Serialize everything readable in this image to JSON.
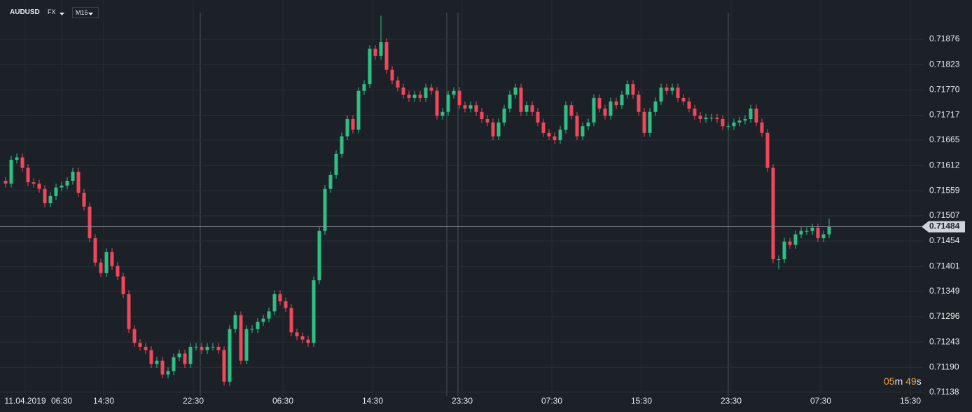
{
  "header": {
    "symbol": "AUDUSD",
    "market": "FX",
    "timeframe": "M15"
  },
  "countdown": {
    "minutes": "05",
    "minutes_unit": "m",
    "seconds": "49",
    "seconds_unit": "s"
  },
  "chart_data": {
    "type": "candlestick",
    "up_color": "#2fbf85",
    "down_color": "#f0475a",
    "current_price": 0.71484,
    "xlim": [
      -1,
      163.75
    ],
    "xticks": [
      {
        "value": 3.5,
        "label": "11.04.2019"
      },
      {
        "value": 10,
        "label": "06:30"
      },
      {
        "value": 17.5,
        "label": "14:30"
      },
      {
        "value": 33.5,
        "label": "22:30"
      },
      {
        "value": 49.5,
        "label": "06:30"
      },
      {
        "value": 65.5,
        "label": "14:30"
      },
      {
        "value": 81.5,
        "label": "23:30"
      },
      {
        "value": 97.5,
        "label": "07:30"
      },
      {
        "value": 113.5,
        "label": "15:30"
      },
      {
        "value": 129.5,
        "label": "23:30"
      },
      {
        "value": 145.5,
        "label": "07:30"
      },
      {
        "value": 161.5,
        "label": "15:30"
      }
    ],
    "ylim": [
      0.71123,
      0.71958
    ],
    "yticks": [
      0.71876,
      0.71823,
      {
        "value": 0.7177,
        "label": "0.71770"
      },
      0.71717,
      0.71665,
      0.71612,
      0.71559,
      0.71507,
      0.71454,
      0.71401,
      0.71349,
      0.71296,
      0.71243,
      {
        "value": 0.7119,
        "label": "0.71190"
      },
      0.71138
    ],
    "open": [
      0.7158,
      0.71574,
      0.71624,
      0.71629,
      0.71607,
      0.71577,
      0.71574,
      0.71563,
      0.71533,
      0.71548,
      0.71566,
      0.7157,
      0.7158,
      0.71599,
      0.71555,
      0.71526,
      0.7146,
      0.71409,
      0.71387,
      0.71431,
      0.71402,
      0.7138,
      0.71343,
      0.7127,
      0.71241,
      0.71233,
      0.71226,
      0.71197,
      0.71204,
      0.71175,
      0.71182,
      0.71211,
      0.71219,
      0.71197,
      0.71233,
      0.71233,
      0.71226,
      0.71233,
      0.71233,
      0.71226,
      0.7116,
      0.7127,
      0.71299,
      0.71204,
      0.7127,
      0.7127,
      0.71285,
      0.71292,
      0.71307,
      0.71343,
      0.71328,
      0.71314,
      0.71263,
      0.71255,
      0.71248,
      0.71241,
      0.71372,
      0.71475,
      0.71563,
      0.71592,
      0.71636,
      0.71673,
      0.71709,
      0.71687,
      0.71768,
      0.71782,
      0.71856,
      0.71841,
      0.7187,
      0.71812,
      0.7179,
      0.71775,
      0.7176,
      0.71753,
      0.7176,
      0.71753,
      0.71775,
      0.71768,
      0.71716,
      0.71724,
      0.7176,
      0.71768,
      0.71738,
      0.71731,
      0.71738,
      0.71724,
      0.71709,
      0.71702,
      0.71673,
      0.71702,
      0.71731,
      0.7176,
      0.71775,
      0.71724,
      0.71738,
      0.71724,
      0.71702,
      0.7168,
      0.71673,
      0.71665,
      0.71687,
      0.71738,
      0.71716,
      0.71673,
      0.71694,
      0.71702,
      0.71753,
      0.71731,
      0.71716,
      0.71746,
      0.71738,
      0.7176,
      0.71782,
      0.7176,
      0.71724,
      0.7168,
      0.71724,
      0.71746,
      0.71775,
      0.71768,
      0.71775,
      0.71753,
      0.71746,
      0.71731,
      0.71716,
      0.71709,
      0.71712,
      0.71712,
      0.71709,
      0.71694,
      0.71694,
      0.71702,
      0.71706,
      0.71709,
      0.71731,
      0.71702,
      0.7168,
      0.71607,
      0.71416,
      0.71416,
      0.71453,
      0.71446,
      0.71468,
      0.71475,
      0.71475,
      0.71482,
      0.7146,
      0.71468
    ],
    "high": [
      0.71588,
      0.71632,
      0.71637,
      0.71637,
      0.71615,
      0.71585,
      0.71582,
      0.71571,
      0.71556,
      0.71574,
      0.71578,
      0.71588,
      0.71607,
      0.71607,
      0.71563,
      0.71534,
      0.71468,
      0.71417,
      0.71439,
      0.71439,
      0.7141,
      0.71388,
      0.71351,
      0.71278,
      0.71249,
      0.71241,
      0.71234,
      0.71212,
      0.71212,
      0.7119,
      0.71219,
      0.71227,
      0.71227,
      0.71241,
      0.71241,
      0.71241,
      0.71241,
      0.71241,
      0.71241,
      0.71234,
      0.71278,
      0.71307,
      0.71307,
      0.71278,
      0.71278,
      0.71293,
      0.713,
      0.71315,
      0.71351,
      0.71351,
      0.71336,
      0.71322,
      0.71271,
      0.71263,
      0.71256,
      0.7138,
      0.71483,
      0.71571,
      0.716,
      0.71644,
      0.71681,
      0.71717,
      0.71717,
      0.71776,
      0.7179,
      0.71864,
      0.71864,
      0.71925,
      0.71878,
      0.7182,
      0.71798,
      0.71783,
      0.71768,
      0.71768,
      0.71768,
      0.71783,
      0.71783,
      0.71776,
      0.71732,
      0.71768,
      0.71776,
      0.71776,
      0.71746,
      0.71746,
      0.71746,
      0.71732,
      0.71717,
      0.7171,
      0.7171,
      0.71739,
      0.71768,
      0.71783,
      0.71783,
      0.71746,
      0.71746,
      0.71732,
      0.7171,
      0.71688,
      0.71681,
      0.71695,
      0.71746,
      0.71746,
      0.71724,
      0.71702,
      0.7171,
      0.71761,
      0.71761,
      0.71739,
      0.71754,
      0.71754,
      0.71768,
      0.7179,
      0.7179,
      0.71768,
      0.71732,
      0.71732,
      0.71754,
      0.71783,
      0.71783,
      0.71783,
      0.71783,
      0.71761,
      0.71754,
      0.71739,
      0.71724,
      0.7172,
      0.7172,
      0.7172,
      0.71717,
      0.71702,
      0.7171,
      0.71714,
      0.71717,
      0.71739,
      0.71739,
      0.7171,
      0.71688,
      0.71615,
      0.71424,
      0.71461,
      0.71461,
      0.71476,
      0.71483,
      0.71483,
      0.7149,
      0.7149,
      0.71476,
      0.71501
    ],
    "low": [
      0.71566,
      0.71566,
      0.71616,
      0.71599,
      0.71569,
      0.71566,
      0.71555,
      0.71525,
      0.71525,
      0.7154,
      0.71558,
      0.71562,
      0.71572,
      0.71547,
      0.71518,
      0.71452,
      0.71401,
      0.71379,
      0.71379,
      0.71394,
      0.71372,
      0.71335,
      0.71262,
      0.71233,
      0.71225,
      0.71218,
      0.71189,
      0.71189,
      0.71167,
      0.71167,
      0.71174,
      0.71203,
      0.71189,
      0.71189,
      0.71225,
      0.71218,
      0.71218,
      0.71225,
      0.71218,
      0.71152,
      0.71152,
      0.71262,
      0.71196,
      0.71196,
      0.71262,
      0.71262,
      0.71277,
      0.71284,
      0.71299,
      0.7132,
      0.71306,
      0.71255,
      0.71247,
      0.7124,
      0.71233,
      0.71233,
      0.71364,
      0.71467,
      0.71555,
      0.71584,
      0.71628,
      0.71665,
      0.71679,
      0.71679,
      0.7176,
      0.71774,
      0.71833,
      0.71833,
      0.71804,
      0.71782,
      0.71767,
      0.71752,
      0.71745,
      0.71745,
      0.71745,
      0.71745,
      0.7176,
      0.71708,
      0.71708,
      0.71716,
      0.71752,
      0.7173,
      0.71723,
      0.71723,
      0.71716,
      0.71701,
      0.71694,
      0.71665,
      0.71665,
      0.71694,
      0.71723,
      0.71752,
      0.71716,
      0.71716,
      0.71716,
      0.71694,
      0.71672,
      0.71665,
      0.71657,
      0.71657,
      0.71679,
      0.71708,
      0.71665,
      0.71665,
      0.71686,
      0.71694,
      0.71723,
      0.71708,
      0.71708,
      0.7173,
      0.7173,
      0.71752,
      0.71752,
      0.71716,
      0.71672,
      0.71672,
      0.71716,
      0.71738,
      0.7176,
      0.7176,
      0.71745,
      0.71738,
      0.71723,
      0.71708,
      0.71701,
      0.71701,
      0.71704,
      0.71701,
      0.71686,
      0.71686,
      0.71686,
      0.71694,
      0.71698,
      0.71701,
      0.71694,
      0.71672,
      0.71599,
      0.71408,
      0.71395,
      0.71408,
      0.71438,
      0.71438,
      0.7146,
      0.71467,
      0.71467,
      0.71452,
      0.71452,
      0.7146
    ],
    "close": [
      0.71574,
      0.71624,
      0.71629,
      0.71607,
      0.71577,
      0.71574,
      0.71563,
      0.71533,
      0.71548,
      0.71566,
      0.7157,
      0.7158,
      0.71599,
      0.71555,
      0.71526,
      0.7146,
      0.71409,
      0.71387,
      0.71431,
      0.71402,
      0.7138,
      0.71343,
      0.7127,
      0.71241,
      0.71233,
      0.71226,
      0.71197,
      0.71204,
      0.71175,
      0.71182,
      0.71211,
      0.71219,
      0.71197,
      0.71233,
      0.71233,
      0.71226,
      0.71233,
      0.71233,
      0.71226,
      0.7116,
      0.7127,
      0.71299,
      0.71204,
      0.7127,
      0.7127,
      0.71285,
      0.71292,
      0.71307,
      0.71343,
      0.71328,
      0.71314,
      0.71263,
      0.71255,
      0.71248,
      0.71241,
      0.71372,
      0.71475,
      0.71563,
      0.71592,
      0.71636,
      0.71673,
      0.71709,
      0.71687,
      0.71768,
      0.71782,
      0.71856,
      0.71841,
      0.7187,
      0.71812,
      0.7179,
      0.71775,
      0.7176,
      0.71753,
      0.7176,
      0.71753,
      0.71775,
      0.71768,
      0.71716,
      0.71724,
      0.7176,
      0.71768,
      0.71738,
      0.71731,
      0.71738,
      0.71724,
      0.71709,
      0.71702,
      0.71673,
      0.71702,
      0.71731,
      0.7176,
      0.71775,
      0.71724,
      0.71738,
      0.71724,
      0.71702,
      0.7168,
      0.71673,
      0.71665,
      0.71687,
      0.71738,
      0.71716,
      0.71673,
      0.71694,
      0.71702,
      0.71753,
      0.71731,
      0.71716,
      0.71746,
      0.71738,
      0.7176,
      0.71782,
      0.7176,
      0.71724,
      0.7168,
      0.71724,
      0.71746,
      0.71775,
      0.71768,
      0.71775,
      0.71753,
      0.71746,
      0.71731,
      0.71716,
      0.71709,
      0.71712,
      0.71712,
      0.71709,
      0.71694,
      0.71694,
      0.71702,
      0.71706,
      0.71709,
      0.71731,
      0.71702,
      0.7168,
      0.71607,
      0.71416,
      0.71416,
      0.71453,
      0.71446,
      0.71468,
      0.71475,
      0.71475,
      0.71482,
      0.7146,
      0.71468,
      0.71484
    ]
  }
}
